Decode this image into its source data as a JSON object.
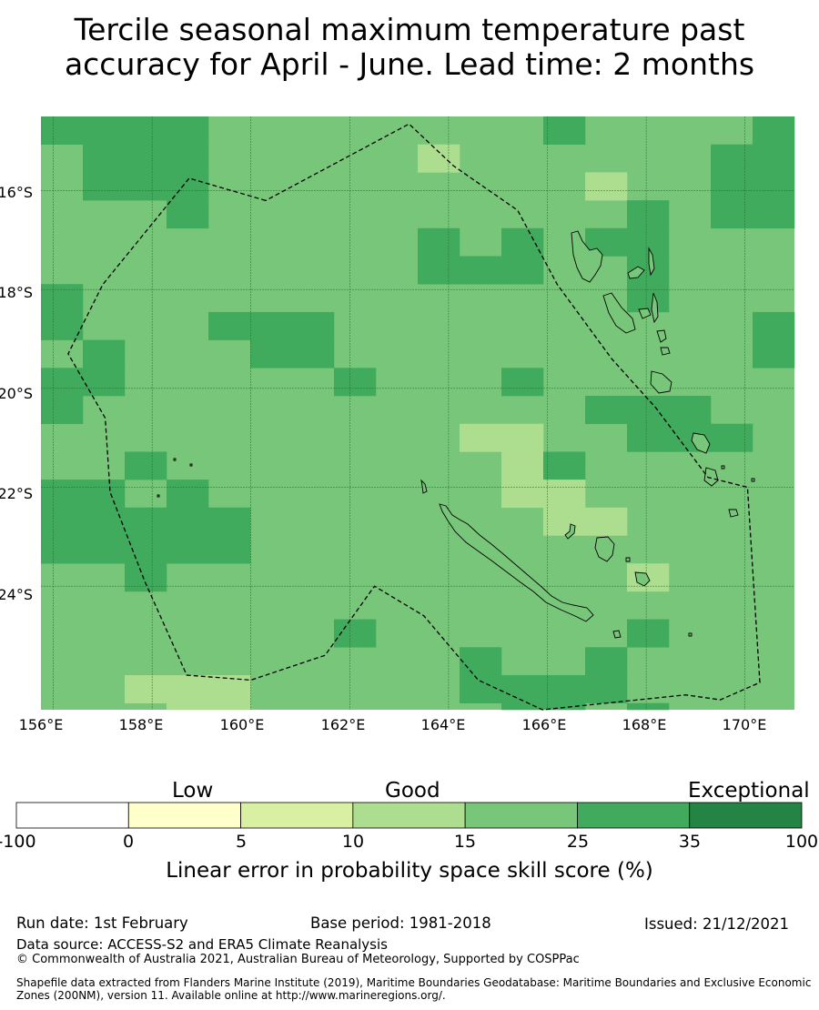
{
  "title_line1": "Tercile seasonal maximum temperature past",
  "title_line2": "accuracy for April - June. Lead time: 2 months",
  "map": {
    "lon_range": [
      155.75,
      171.0
    ],
    "lat_range": [
      -26.5,
      -14.5
    ],
    "cell_deg": 0.8333,
    "x_ticks": [
      "156°E",
      "158°E",
      "160°E",
      "162°E",
      "164°E",
      "166°E",
      "168°E",
      "170°E"
    ],
    "x_tick_values": [
      156,
      158,
      160,
      162,
      164,
      166,
      168,
      170
    ],
    "y_ticks": [
      "16°S",
      "18°S",
      "20°S",
      "22°S",
      "24°S"
    ],
    "y_tick_values": [
      -16,
      -18,
      -20,
      -22,
      -24
    ],
    "base_color": "#78c679",
    "cells": [
      {
        "c": 0,
        "r": 0,
        "cat": "35"
      },
      {
        "c": 1,
        "r": 0,
        "cat": "35"
      },
      {
        "c": 2,
        "r": 0,
        "cat": "35"
      },
      {
        "c": 3,
        "r": 0,
        "cat": "35"
      },
      {
        "c": 12,
        "r": 0,
        "cat": "35"
      },
      {
        "c": 17,
        "r": 0,
        "cat": "35"
      },
      {
        "c": 1,
        "r": 1,
        "cat": "35"
      },
      {
        "c": 2,
        "r": 1,
        "cat": "35"
      },
      {
        "c": 3,
        "r": 1,
        "cat": "35"
      },
      {
        "c": 9,
        "r": 1,
        "cat": "15"
      },
      {
        "c": 16,
        "r": 1,
        "cat": "35"
      },
      {
        "c": 17,
        "r": 1,
        "cat": "35"
      },
      {
        "c": 1,
        "r": 2,
        "cat": "35"
      },
      {
        "c": 2,
        "r": 2,
        "cat": "35"
      },
      {
        "c": 3,
        "r": 2,
        "cat": "35"
      },
      {
        "c": 13,
        "r": 2,
        "cat": "15"
      },
      {
        "c": 16,
        "r": 2,
        "cat": "35"
      },
      {
        "c": 17,
        "r": 2,
        "cat": "35"
      },
      {
        "c": 3,
        "r": 3,
        "cat": "35"
      },
      {
        "c": 14,
        "r": 3,
        "cat": "35"
      },
      {
        "c": 16,
        "r": 3,
        "cat": "35"
      },
      {
        "c": 17,
        "r": 3,
        "cat": "35"
      },
      {
        "c": 18,
        "r": 3,
        "cat": "100"
      },
      {
        "c": 9,
        "r": 4,
        "cat": "35"
      },
      {
        "c": 11,
        "r": 4,
        "cat": "35"
      },
      {
        "c": 13,
        "r": 4,
        "cat": "35"
      },
      {
        "c": 14,
        "r": 4,
        "cat": "35"
      },
      {
        "c": 9,
        "r": 5,
        "cat": "35"
      },
      {
        "c": 10,
        "r": 5,
        "cat": "35"
      },
      {
        "c": 11,
        "r": 5,
        "cat": "35"
      },
      {
        "c": 14,
        "r": 5,
        "cat": "35"
      },
      {
        "c": 0,
        "r": 6,
        "cat": "35"
      },
      {
        "c": 14,
        "r": 6,
        "cat": "35"
      },
      {
        "c": 0,
        "r": 7,
        "cat": "35"
      },
      {
        "c": 4,
        "r": 7,
        "cat": "35"
      },
      {
        "c": 5,
        "r": 7,
        "cat": "35"
      },
      {
        "c": 6,
        "r": 7,
        "cat": "35"
      },
      {
        "c": 17,
        "r": 7,
        "cat": "35"
      },
      {
        "c": 18,
        "r": 7,
        "cat": "35"
      },
      {
        "c": 1,
        "r": 8,
        "cat": "35"
      },
      {
        "c": 5,
        "r": 8,
        "cat": "35"
      },
      {
        "c": 6,
        "r": 8,
        "cat": "35"
      },
      {
        "c": 17,
        "r": 8,
        "cat": "35"
      },
      {
        "c": 18,
        "r": 8,
        "cat": "35"
      },
      {
        "c": 0,
        "r": 9,
        "cat": "35"
      },
      {
        "c": 1,
        "r": 9,
        "cat": "35"
      },
      {
        "c": 7,
        "r": 9,
        "cat": "35"
      },
      {
        "c": 11,
        "r": 9,
        "cat": "35"
      },
      {
        "c": 0,
        "r": 10,
        "cat": "35"
      },
      {
        "c": 13,
        "r": 10,
        "cat": "35"
      },
      {
        "c": 14,
        "r": 10,
        "cat": "35"
      },
      {
        "c": 15,
        "r": 10,
        "cat": "35"
      },
      {
        "c": 10,
        "r": 11,
        "cat": "15"
      },
      {
        "c": 11,
        "r": 11,
        "cat": "15"
      },
      {
        "c": 14,
        "r": 11,
        "cat": "35"
      },
      {
        "c": 15,
        "r": 11,
        "cat": "35"
      },
      {
        "c": 16,
        "r": 11,
        "cat": "35"
      },
      {
        "c": 2,
        "r": 12,
        "cat": "35"
      },
      {
        "c": 11,
        "r": 12,
        "cat": "15"
      },
      {
        "c": 12,
        "r": 12,
        "cat": "35"
      },
      {
        "c": 18,
        "r": 12,
        "cat": "35"
      },
      {
        "c": 0,
        "r": 13,
        "cat": "35"
      },
      {
        "c": 1,
        "r": 13,
        "cat": "35"
      },
      {
        "c": 3,
        "r": 13,
        "cat": "35"
      },
      {
        "c": 11,
        "r": 13,
        "cat": "15"
      },
      {
        "c": 12,
        "r": 13,
        "cat": "15"
      },
      {
        "c": 0,
        "r": 14,
        "cat": "35"
      },
      {
        "c": 1,
        "r": 14,
        "cat": "35"
      },
      {
        "c": 2,
        "r": 14,
        "cat": "35"
      },
      {
        "c": 3,
        "r": 14,
        "cat": "35"
      },
      {
        "c": 4,
        "r": 14,
        "cat": "35"
      },
      {
        "c": 12,
        "r": 14,
        "cat": "15"
      },
      {
        "c": 13,
        "r": 14,
        "cat": "15"
      },
      {
        "c": 0,
        "r": 15,
        "cat": "35"
      },
      {
        "c": 1,
        "r": 15,
        "cat": "35"
      },
      {
        "c": 2,
        "r": 15,
        "cat": "35"
      },
      {
        "c": 3,
        "r": 15,
        "cat": "35"
      },
      {
        "c": 4,
        "r": 15,
        "cat": "35"
      },
      {
        "c": 18,
        "r": 15,
        "cat": "35"
      },
      {
        "c": 2,
        "r": 16,
        "cat": "35"
      },
      {
        "c": 14,
        "r": 16,
        "cat": "15"
      },
      {
        "c": 7,
        "r": 18,
        "cat": "35"
      },
      {
        "c": 14,
        "r": 18,
        "cat": "35"
      },
      {
        "c": 10,
        "r": 19,
        "cat": "35"
      },
      {
        "c": 13,
        "r": 19,
        "cat": "35"
      },
      {
        "c": 2,
        "r": 20,
        "cat": "15"
      },
      {
        "c": 3,
        "r": 20,
        "cat": "15"
      },
      {
        "c": 4,
        "r": 20,
        "cat": "15"
      },
      {
        "c": 10,
        "r": 20,
        "cat": "35"
      },
      {
        "c": 11,
        "r": 20,
        "cat": "35"
      },
      {
        "c": 12,
        "r": 20,
        "cat": "35"
      },
      {
        "c": 13,
        "r": 20,
        "cat": "35"
      },
      {
        "c": 18,
        "r": 20,
        "cat": "15"
      },
      {
        "c": 3,
        "r": 21,
        "cat": "15"
      },
      {
        "c": 4,
        "r": 21,
        "cat": "15"
      },
      {
        "c": 11,
        "r": 21,
        "cat": "35"
      },
      {
        "c": 12,
        "r": 21,
        "cat": "35"
      },
      {
        "c": 14,
        "r": 21,
        "cat": "35"
      }
    ],
    "eez_boundary": [
      [
        160.3,
        -16.2
      ],
      [
        158.75,
        -15.75
      ],
      [
        157.0,
        -17.9
      ],
      [
        156.3,
        -19.3
      ],
      [
        157.05,
        -20.6
      ],
      [
        157.15,
        -22.1
      ],
      [
        157.85,
        -23.9
      ],
      [
        158.7,
        -25.8
      ],
      [
        160.0,
        -25.9
      ],
      [
        161.5,
        -25.4
      ],
      [
        162.5,
        -24.0
      ],
      [
        163.5,
        -24.6
      ],
      [
        164.6,
        -25.9
      ],
      [
        165.9,
        -26.5
      ],
      [
        168.8,
        -26.2
      ],
      [
        169.5,
        -26.3
      ],
      [
        170.3,
        -25.95
      ],
      [
        170.05,
        -22.0
      ],
      [
        169.25,
        -21.8
      ],
      [
        168.2,
        -20.4
      ],
      [
        167.3,
        -19.4
      ],
      [
        166.2,
        -17.9
      ],
      [
        165.4,
        -16.4
      ],
      [
        164.1,
        -15.5
      ],
      [
        163.2,
        -14.65
      ]
    ]
  },
  "colorbar": {
    "categories": [
      "Low",
      "Good",
      "Exceptional"
    ],
    "ticks": [
      "-100",
      "0",
      "5",
      "10",
      "15",
      "25",
      "35",
      "100"
    ],
    "colors": [
      "#ffffff",
      "#ffffcc",
      "#d9f0a3",
      "#addd8e",
      "#78c679",
      "#41ab5d",
      "#238443"
    ],
    "label": "Linear error in probability space skill score (%)"
  },
  "footer": {
    "run_date": "Run date: 1st February",
    "base_period": "Base period: 1981-2018",
    "issued": "Issued: 21/12/2021",
    "data_source": "Data source: ACCESS-S2 and ERA5 Climate Reanalysis",
    "copyright": "© Commonwealth of Australia 2021, Australian Bureau of Meteorology, Supported by COSPPac",
    "shapefile": "Shapefile data extracted from Flanders Marine Institute (2019), Maritime Boundaries Geodatabase: Maritime Boundaries and Exclusive Economic Zones (200NM), version 11. Available online at http://www.marineregions.org/."
  }
}
